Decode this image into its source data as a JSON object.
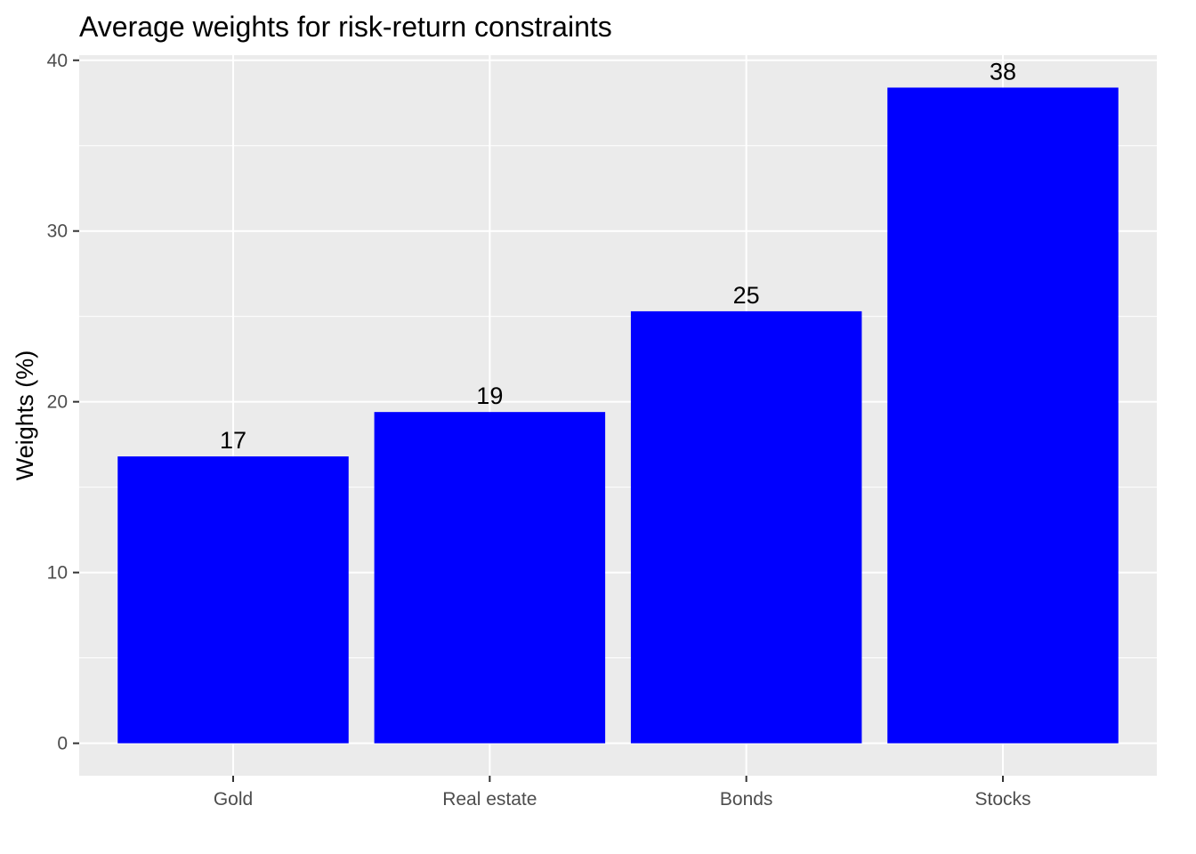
{
  "chart_data": {
    "type": "bar",
    "title": "Average weights for risk-return constraints",
    "xlabel": "",
    "ylabel": "Weights (%)",
    "categories": [
      "Gold",
      "Real estate",
      "Bonds",
      "Stocks"
    ],
    "values": [
      16.8,
      19.4,
      25.3,
      38.4
    ],
    "data_labels": [
      "17",
      "19",
      "25",
      "38"
    ],
    "ylim": [
      -1.9,
      40.3
    ],
    "yticks": [
      0,
      10,
      20,
      30,
      40
    ],
    "ytick_labels": [
      "0",
      "10",
      "20",
      "30",
      "40"
    ],
    "grid": true,
    "legend": "none",
    "colors": {
      "bar": "#0000ff",
      "panel_background": "#ebebeb",
      "grid_line": "#ffffff"
    }
  }
}
